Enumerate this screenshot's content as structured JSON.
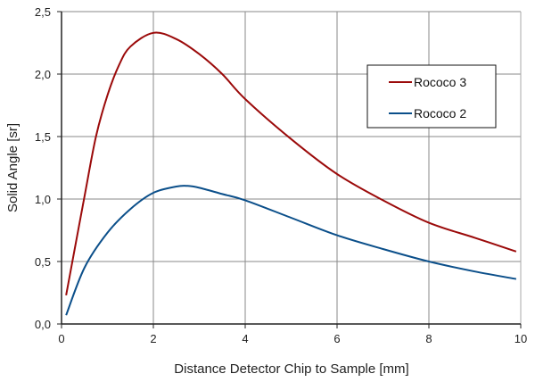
{
  "chart_data": {
    "type": "line",
    "title": "",
    "xlabel": "Distance Detector Chip to Sample [mm]",
    "ylabel": "Solid Angle [sr]",
    "xlim": [
      0,
      10
    ],
    "ylim": [
      0,
      2.5
    ],
    "xticks": [
      0,
      2,
      4,
      6,
      8,
      10
    ],
    "xtick_labels": [
      "0",
      "2",
      "4",
      "6",
      "8",
      "10"
    ],
    "yticks": [
      0,
      0.5,
      1.0,
      1.5,
      2.0,
      2.5
    ],
    "ytick_labels": [
      "0,0",
      "0,5",
      "1,0",
      "1,5",
      "2,0",
      "2,5"
    ],
    "grid": true,
    "legend_position": "top-right",
    "series": [
      {
        "name": "Rococo 3",
        "color": "#9b0a0a",
        "x": [
          0.1,
          0.5,
          0.75,
          1.0,
          1.25,
          1.5,
          2.0,
          2.5,
          3.0,
          3.5,
          4.0,
          5.0,
          6.0,
          7.0,
          8.0,
          9.0,
          9.9
        ],
        "y": [
          0.23,
          1.02,
          1.5,
          1.83,
          2.07,
          2.22,
          2.33,
          2.28,
          2.16,
          2.0,
          1.8,
          1.48,
          1.2,
          0.99,
          0.81,
          0.69,
          0.58
        ]
      },
      {
        "name": "Rococo 2",
        "color": "#0b4f8a",
        "x": [
          0.1,
          0.5,
          1.0,
          1.5,
          2.0,
          2.5,
          2.75,
          3.0,
          3.5,
          4.0,
          5.0,
          6.0,
          7.0,
          8.0,
          9.0,
          9.9
        ],
        "y": [
          0.07,
          0.45,
          0.73,
          0.92,
          1.05,
          1.1,
          1.105,
          1.09,
          1.04,
          0.99,
          0.85,
          0.71,
          0.6,
          0.5,
          0.42,
          0.36
        ]
      }
    ]
  }
}
